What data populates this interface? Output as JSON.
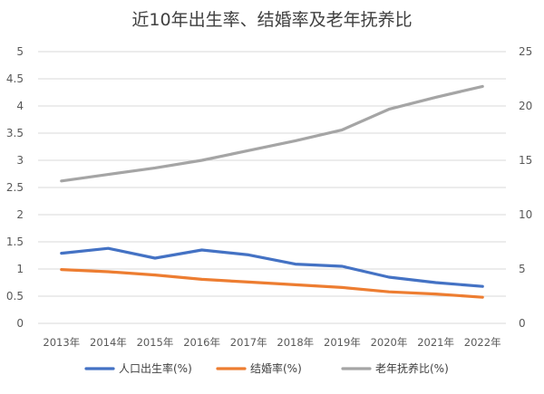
{
  "chart_data": {
    "type": "line",
    "title": "近10年出生率、结婚率及老年抚养比",
    "categories": [
      "2013年",
      "2014年",
      "2015年",
      "2016年",
      "2017年",
      "2018年",
      "2019年",
      "2020年",
      "2021年",
      "2022年"
    ],
    "y_left": {
      "ylim": [
        0,
        5
      ],
      "ticks": [
        "0",
        "0.5",
        "1",
        "1.5",
        "2",
        "2.5",
        "3",
        "3.5",
        "4",
        "4.5",
        "5"
      ]
    },
    "y_right": {
      "ylim": [
        0,
        25
      ],
      "ticks": [
        "0",
        "5",
        "10",
        "15",
        "20",
        "25"
      ]
    },
    "grid": true,
    "legend_position": "bottom",
    "series": [
      {
        "name": "人口出生率(%)",
        "axis": "left",
        "color": "#4472C4",
        "values": [
          1.29,
          1.38,
          1.2,
          1.35,
          1.26,
          1.09,
          1.05,
          0.85,
          0.75,
          0.68
        ]
      },
      {
        "name": "结婚率(%)",
        "axis": "left",
        "color": "#ED7D31",
        "values": [
          0.99,
          0.95,
          0.89,
          0.81,
          0.76,
          0.71,
          0.66,
          0.58,
          0.54,
          0.48
        ]
      },
      {
        "name": "老年抚养比(%)",
        "axis": "right",
        "color": "#A5A5A5",
        "values": [
          13.1,
          13.7,
          14.3,
          15.0,
          15.9,
          16.8,
          17.8,
          19.7,
          20.8,
          21.8
        ]
      }
    ]
  }
}
